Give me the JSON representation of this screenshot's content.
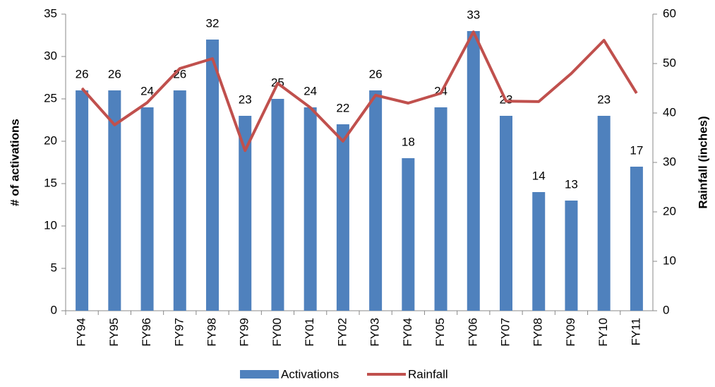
{
  "chart_data": {
    "type": "bar-line",
    "categories": [
      "FY94",
      "FY95",
      "FY96",
      "FY97",
      "FY98",
      "FY99",
      "FY00",
      "FY01",
      "FY02",
      "FY03",
      "FY04",
      "FY05",
      "FY06",
      "FY07",
      "FY08",
      "FY09",
      "FY10",
      "FY11"
    ],
    "series": [
      {
        "name": "Activations",
        "type": "bar",
        "color": "#4f81bd",
        "axis": "y",
        "values": [
          26,
          26,
          24,
          26,
          32,
          23,
          25,
          24,
          22,
          26,
          18,
          24,
          33,
          23,
          14,
          13,
          23,
          17
        ]
      },
      {
        "name": "Rainfall",
        "type": "line",
        "color": "#c0504d",
        "axis": "y2",
        "values": [
          45,
          37.6,
          42.1,
          49,
          51,
          32.4,
          46,
          41.1,
          34.3,
          43.6,
          42,
          44,
          56.4,
          42.4,
          42.3,
          48,
          54.7,
          44
        ]
      }
    ],
    "ylabel": "# of activations",
    "y2label": "Rainfall (inches)",
    "ylim": [
      0,
      35
    ],
    "yticks": [
      0,
      5,
      10,
      15,
      20,
      25,
      30,
      35
    ],
    "y2lim": [
      0,
      60
    ],
    "y2ticks": [
      0,
      10,
      20,
      30,
      40,
      50,
      60
    ],
    "legend": "bottom"
  }
}
